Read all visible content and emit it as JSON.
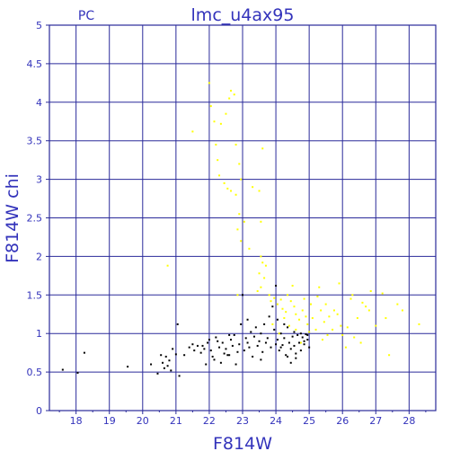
{
  "chart_data": {
    "type": "scatter",
    "title": "lmc_u4ax95",
    "corner_label": "PC",
    "xlabel": "F814W",
    "ylabel": "F814W  chi",
    "xlim": [
      17.2,
      28.8
    ],
    "ylim": [
      0,
      5
    ],
    "x_ticks": [
      18,
      19,
      20,
      21,
      22,
      23,
      24,
      25,
      26,
      27,
      28
    ],
    "y_ticks": [
      0,
      0.5,
      1,
      1.5,
      2,
      2.5,
      3,
      3.5,
      4,
      4.5,
      5
    ],
    "grid": true,
    "series": [
      {
        "color": "#ffff00",
        "points": [
          [
            20.75,
            1.88
          ],
          [
            22.0,
            4.25
          ],
          [
            22.05,
            3.95
          ],
          [
            22.15,
            3.75
          ],
          [
            22.35,
            3.72
          ],
          [
            22.5,
            3.85
          ],
          [
            22.6,
            4.05
          ],
          [
            22.65,
            4.15
          ],
          [
            22.75,
            4.1
          ],
          [
            21.5,
            3.62
          ],
          [
            22.2,
            3.45
          ],
          [
            22.25,
            3.25
          ],
          [
            22.3,
            3.05
          ],
          [
            22.45,
            2.95
          ],
          [
            22.55,
            2.88
          ],
          [
            22.65,
            2.85
          ],
          [
            22.8,
            2.8
          ],
          [
            22.9,
            3.2
          ],
          [
            22.95,
            3.0
          ],
          [
            22.8,
            3.45
          ],
          [
            22.9,
            2.55
          ],
          [
            22.85,
            2.35
          ],
          [
            22.95,
            2.2
          ],
          [
            23.05,
            2.45
          ],
          [
            23.2,
            2.1
          ],
          [
            23.3,
            2.9
          ],
          [
            23.5,
            2.85
          ],
          [
            23.55,
            2.45
          ],
          [
            23.6,
            3.4
          ],
          [
            23.55,
            2.0
          ],
          [
            23.6,
            1.92
          ],
          [
            23.7,
            1.88
          ],
          [
            23.5,
            1.78
          ],
          [
            23.65,
            1.72
          ],
          [
            23.55,
            1.6
          ],
          [
            23.45,
            1.55
          ],
          [
            22.85,
            1.5
          ],
          [
            23.8,
            1.5
          ],
          [
            23.85,
            1.42
          ],
          [
            23.95,
            1.46
          ],
          [
            24.05,
            1.38
          ],
          [
            24.15,
            1.44
          ],
          [
            24.2,
            1.32
          ],
          [
            24.3,
            1.28
          ],
          [
            24.35,
            1.5
          ],
          [
            24.45,
            1.42
          ],
          [
            24.5,
            1.62
          ],
          [
            24.55,
            1.35
          ],
          [
            24.6,
            1.25
          ],
          [
            24.7,
            1.18
          ],
          [
            24.8,
            1.3
          ],
          [
            24.85,
            1.45
          ],
          [
            24.9,
            1.22
          ],
          [
            24.95,
            1.12
          ],
          [
            25.05,
            1.38
          ],
          [
            25.1,
            1.2
          ],
          [
            25.2,
            1.05
          ],
          [
            25.25,
            1.48
          ],
          [
            25.3,
            1.6
          ],
          [
            25.35,
            1.3
          ],
          [
            25.45,
            1.15
          ],
          [
            25.5,
            1.38
          ],
          [
            25.6,
            1.22
          ],
          [
            25.7,
            1.05
          ],
          [
            25.75,
            1.3
          ],
          [
            25.85,
            1.25
          ],
          [
            25.9,
            1.65
          ],
          [
            25.95,
            1.1
          ],
          [
            26.0,
            0.98
          ],
          [
            26.1,
            0.82
          ],
          [
            26.15,
            1.08
          ],
          [
            26.25,
            1.45
          ],
          [
            26.3,
            1.5
          ],
          [
            26.45,
            1.2
          ],
          [
            26.6,
            1.4
          ],
          [
            26.7,
            1.35
          ],
          [
            26.8,
            1.3
          ],
          [
            26.85,
            1.55
          ],
          [
            27.0,
            1.1
          ],
          [
            27.2,
            1.52
          ],
          [
            27.3,
            1.2
          ],
          [
            27.4,
            0.72
          ],
          [
            27.65,
            1.38
          ],
          [
            27.8,
            1.3
          ],
          [
            28.3,
            1.12
          ],
          [
            26.55,
            0.88
          ],
          [
            24.4,
            1.1
          ],
          [
            24.6,
            1.05
          ],
          [
            24.75,
            0.88
          ],
          [
            23.9,
            1.12
          ],
          [
            24.1,
            1.0
          ],
          [
            25.4,
            0.92
          ],
          [
            25.55,
            0.98
          ],
          [
            24.25,
            1.2
          ],
          [
            25.0,
            1.02
          ],
          [
            26.35,
            0.95
          ]
        ]
      },
      {
        "color": "#000000",
        "points": [
          [
            17.6,
            0.53
          ],
          [
            18.05,
            0.49
          ],
          [
            18.25,
            0.75
          ],
          [
            19.55,
            0.57
          ],
          [
            20.25,
            0.6
          ],
          [
            20.45,
            0.48
          ],
          [
            20.55,
            0.72
          ],
          [
            20.6,
            0.62
          ],
          [
            20.65,
            0.55
          ],
          [
            20.7,
            0.7
          ],
          [
            20.75,
            0.58
          ],
          [
            20.8,
            0.65
          ],
          [
            20.85,
            0.52
          ],
          [
            20.9,
            0.8
          ],
          [
            21.0,
            0.73
          ],
          [
            21.1,
            0.45
          ],
          [
            21.05,
            1.12
          ],
          [
            21.25,
            0.72
          ],
          [
            21.4,
            0.82
          ],
          [
            21.5,
            0.86
          ],
          [
            21.55,
            0.78
          ],
          [
            21.65,
            0.84
          ],
          [
            21.75,
            0.75
          ],
          [
            21.85,
            0.8
          ],
          [
            21.9,
            0.6
          ],
          [
            21.95,
            0.88
          ],
          [
            22.0,
            0.92
          ],
          [
            22.05,
            0.78
          ],
          [
            22.1,
            0.7
          ],
          [
            22.15,
            0.66
          ],
          [
            22.2,
            0.95
          ],
          [
            22.3,
            0.82
          ],
          [
            22.35,
            0.62
          ],
          [
            22.4,
            0.88
          ],
          [
            22.45,
            0.74
          ],
          [
            22.5,
            0.8
          ],
          [
            22.6,
            0.72
          ],
          [
            22.65,
            0.92
          ],
          [
            22.7,
            0.84
          ],
          [
            22.75,
            0.98
          ],
          [
            22.8,
            0.6
          ],
          [
            22.85,
            0.76
          ],
          [
            22.9,
            0.86
          ],
          [
            22.95,
            1.12
          ],
          [
            23.0,
            1.5
          ],
          [
            23.05,
            0.78
          ],
          [
            23.1,
            0.94
          ],
          [
            23.15,
            0.88
          ],
          [
            23.2,
            0.82
          ],
          [
            23.25,
            1.02
          ],
          [
            23.3,
            0.7
          ],
          [
            23.35,
            0.96
          ],
          [
            23.4,
            1.08
          ],
          [
            23.45,
            0.84
          ],
          [
            23.5,
            0.9
          ],
          [
            23.55,
            1.0
          ],
          [
            23.6,
            0.76
          ],
          [
            23.65,
            1.12
          ],
          [
            23.7,
            0.88
          ],
          [
            23.75,
            0.94
          ],
          [
            23.8,
            1.22
          ],
          [
            23.85,
            0.82
          ],
          [
            23.9,
            1.35
          ],
          [
            23.95,
            1.05
          ],
          [
            24.0,
            0.86
          ],
          [
            24.0,
            1.62
          ],
          [
            24.05,
            0.92
          ],
          [
            24.1,
            0.78
          ],
          [
            24.15,
            1.0
          ],
          [
            24.2,
            0.85
          ],
          [
            24.25,
            0.94
          ],
          [
            24.3,
            0.72
          ],
          [
            24.35,
            1.08
          ],
          [
            24.4,
            0.88
          ],
          [
            24.45,
            0.8
          ],
          [
            24.5,
            0.96
          ],
          [
            24.55,
            0.84
          ],
          [
            24.6,
            0.74
          ],
          [
            24.65,
            0.98
          ],
          [
            24.7,
            0.88
          ],
          [
            24.75,
            0.78
          ],
          [
            24.8,
            0.95
          ],
          [
            24.85,
            0.86
          ],
          [
            24.9,
            0.99
          ],
          [
            24.95,
            0.92
          ],
          [
            25.0,
            0.82
          ],
          [
            24.55,
            1.02
          ],
          [
            24.25,
            1.12
          ],
          [
            24.05,
            1.18
          ],
          [
            24.6,
            0.68
          ],
          [
            24.45,
            0.62
          ],
          [
            24.35,
            0.7
          ],
          [
            24.75,
            1.0
          ],
          [
            24.85,
            0.9
          ],
          [
            22.6,
            0.98
          ],
          [
            22.25,
            0.9
          ],
          [
            21.8,
            0.84
          ],
          [
            23.55,
            0.66
          ],
          [
            23.15,
            1.18
          ],
          [
            22.55,
            0.72
          ],
          [
            24.15,
            0.82
          ],
          [
            24.95,
            0.98
          ]
        ]
      }
    ]
  }
}
